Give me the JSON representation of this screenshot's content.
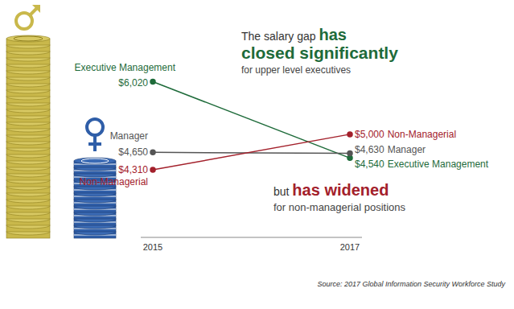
{
  "chart_data": {
    "type": "line",
    "categories": [
      "2015",
      "2017"
    ],
    "series": [
      {
        "name": "Executive Management",
        "color": "#1e6b3a",
        "values": [
          6020,
          4540
        ],
        "value_labels": [
          "$6,020",
          "$4,540"
        ]
      },
      {
        "name": "Manager",
        "color": "#555555",
        "values": [
          4650,
          4630
        ],
        "value_labels": [
          "$4,650",
          "$4,630"
        ]
      },
      {
        "name": "Non-Managerial",
        "color": "#a3202b",
        "values": [
          4310,
          5000
        ],
        "value_labels": [
          "$4,310",
          "$5,000"
        ]
      }
    ],
    "ylim": [
      3000,
      6200
    ],
    "tick_labels": "x",
    "data_labels": true,
    "marker": "circle",
    "annotations": [
      {
        "lines": [
          [
            "The salary gap ",
            "has"
          ],
          [
            "closed significantly"
          ],
          [
            "for upper level executives"
          ]
        ]
      },
      {
        "lines": [
          [
            "but ",
            "has widened"
          ],
          [
            "for non-managerial positions"
          ]
        ]
      }
    ],
    "source": "Source: 2017 Global Information Security Workforce Study"
  }
}
